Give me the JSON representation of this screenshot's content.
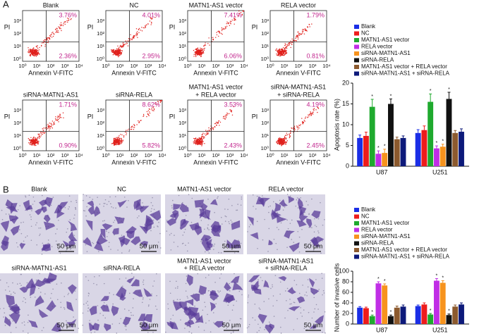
{
  "panel_labels": [
    "A",
    "B"
  ],
  "flow_cytometry": {
    "x_label": "Annexin V-FITC",
    "y_label": "PI",
    "x_ticks": [
      "10⁰",
      "10¹",
      "10²",
      "10³",
      "10⁴"
    ],
    "y_ticks": [
      "10⁰",
      "10¹",
      "10²",
      "10³",
      "10⁴"
    ],
    "plots": [
      {
        "title": [
          "Blank"
        ],
        "upper_right": "3.76%",
        "lower_right": "2.36%"
      },
      {
        "title": [
          "NC"
        ],
        "upper_right": "4.01%",
        "lower_right": "2.95%"
      },
      {
        "title": [
          "MATN1-AS1 vector"
        ],
        "upper_right": "7.41%",
        "lower_right": "6.06%"
      },
      {
        "title": [
          "RELA vector"
        ],
        "upper_right": "1.79%",
        "lower_right": "0.81%"
      },
      {
        "title": [
          "siRNA-MATN1-AS1"
        ],
        "upper_right": "1.71%",
        "lower_right": "0.90%"
      },
      {
        "title": [
          "siRNA-RELA"
        ],
        "upper_right": "8.62%",
        "lower_right": "5.82%"
      },
      {
        "title": [
          "MATN1-AS1 vector",
          "+ RELA vector"
        ],
        "upper_right": "3.53%",
        "lower_right": "2.43%"
      },
      {
        "title": [
          "siRNA-MATN1-AS1",
          "+ siRNA-RELA"
        ],
        "upper_right": "4.19%",
        "lower_right": "2.45%"
      }
    ]
  },
  "invasion_images": {
    "scale_bar": "50 μm",
    "images": [
      {
        "title": [
          "Blank"
        ]
      },
      {
        "title": [
          "NC"
        ]
      },
      {
        "title": [
          "MATN1-AS1 vector"
        ]
      },
      {
        "title": [
          "RELA vector"
        ]
      },
      {
        "title": [
          "siRNA-MATN1-AS1"
        ]
      },
      {
        "title": [
          "siRNA-RELA"
        ]
      },
      {
        "title": [
          "MATN1-AS1 vector",
          "+ RELA vector"
        ]
      },
      {
        "title": [
          "siRNA-MATN1-AS1",
          "+ siRNA-RELA"
        ]
      }
    ]
  },
  "chart_data": [
    {
      "type": "bar",
      "y_label": "Apoptosis rate (%)",
      "categories": [
        "U87",
        "U251"
      ],
      "ylim": [
        0,
        20
      ],
      "yticks": [
        0,
        5,
        10,
        15,
        20
      ],
      "series": [
        {
          "name": "Blank",
          "color": "#1a2ee6",
          "values": [
            6.8,
            8.0
          ],
          "errors": [
            0.7,
            0.8
          ]
        },
        {
          "name": "NC",
          "color": "#ee1c1c",
          "values": [
            7.3,
            8.7
          ],
          "errors": [
            0.9,
            1.0
          ]
        },
        {
          "name": "MATN1-AS1 vector",
          "color": "#1faa2e",
          "values": [
            14.3,
            15.5
          ],
          "errors": [
            1.8,
            1.9
          ],
          "annotation": "*"
        },
        {
          "name": "RELA vector",
          "color": "#c02ee6",
          "values": [
            3.0,
            4.3
          ],
          "errors": [
            0.7,
            0.6
          ],
          "annotation": "*"
        },
        {
          "name": "siRNA-MATN1-AS1",
          "color": "#f7931e",
          "values": [
            3.2,
            4.7
          ],
          "errors": [
            0.9,
            0.6
          ],
          "annotation": "*"
        },
        {
          "name": "siRNA-RELA",
          "color": "#111111",
          "values": [
            15.0,
            16.2
          ],
          "errors": [
            1.2,
            1.6
          ],
          "annotation": "*"
        },
        {
          "name": "MATN1-AS1 vector + RELA vector",
          "color": "#8c5a2e",
          "values": [
            6.5,
            8.0
          ],
          "errors": [
            0.5,
            0.6
          ]
        },
        {
          "name": "siRNA-MATN1-AS1 + siRNA-RELA",
          "color": "#0d1a7a",
          "values": [
            6.8,
            8.3
          ],
          "errors": [
            0.5,
            0.7
          ]
        }
      ]
    },
    {
      "type": "bar",
      "y_label": "Number of invasive cells",
      "categories": [
        "U87",
        "U251"
      ],
      "ylim": [
        0,
        100
      ],
      "yticks": [
        0,
        20,
        40,
        60,
        80,
        100
      ],
      "series": [
        {
          "name": "Blank",
          "color": "#1a2ee6",
          "values": [
            31,
            34
          ],
          "errors": [
            2,
            2
          ]
        },
        {
          "name": "NC",
          "color": "#ee1c1c",
          "values": [
            30,
            37
          ],
          "errors": [
            2,
            3
          ]
        },
        {
          "name": "MATN1-AS1 vector",
          "color": "#1faa2e",
          "values": [
            15,
            18
          ],
          "errors": [
            2,
            2
          ],
          "annotation": "*"
        },
        {
          "name": "RELA vector",
          "color": "#c02ee6",
          "values": [
            77,
            82
          ],
          "errors": [
            3,
            4
          ],
          "annotation": "*"
        },
        {
          "name": "siRNA-MATN1-AS1",
          "color": "#f7931e",
          "values": [
            73,
            78
          ],
          "errors": [
            3,
            4
          ],
          "annotation": "*"
        },
        {
          "name": "siRNA-RELA",
          "color": "#111111",
          "values": [
            15,
            17
          ],
          "errors": [
            2,
            2
          ],
          "annotation": "*"
        },
        {
          "name": "MATN1-AS1 vector + RELA vector",
          "color": "#8c5a2e",
          "values": [
            31,
            33
          ],
          "errors": [
            3,
            3
          ]
        },
        {
          "name": "siRNA-MATN1-AS1 + siRNA-RELA",
          "color": "#0d1a7a",
          "values": [
            33,
            37
          ],
          "errors": [
            3,
            3
          ]
        }
      ]
    }
  ]
}
